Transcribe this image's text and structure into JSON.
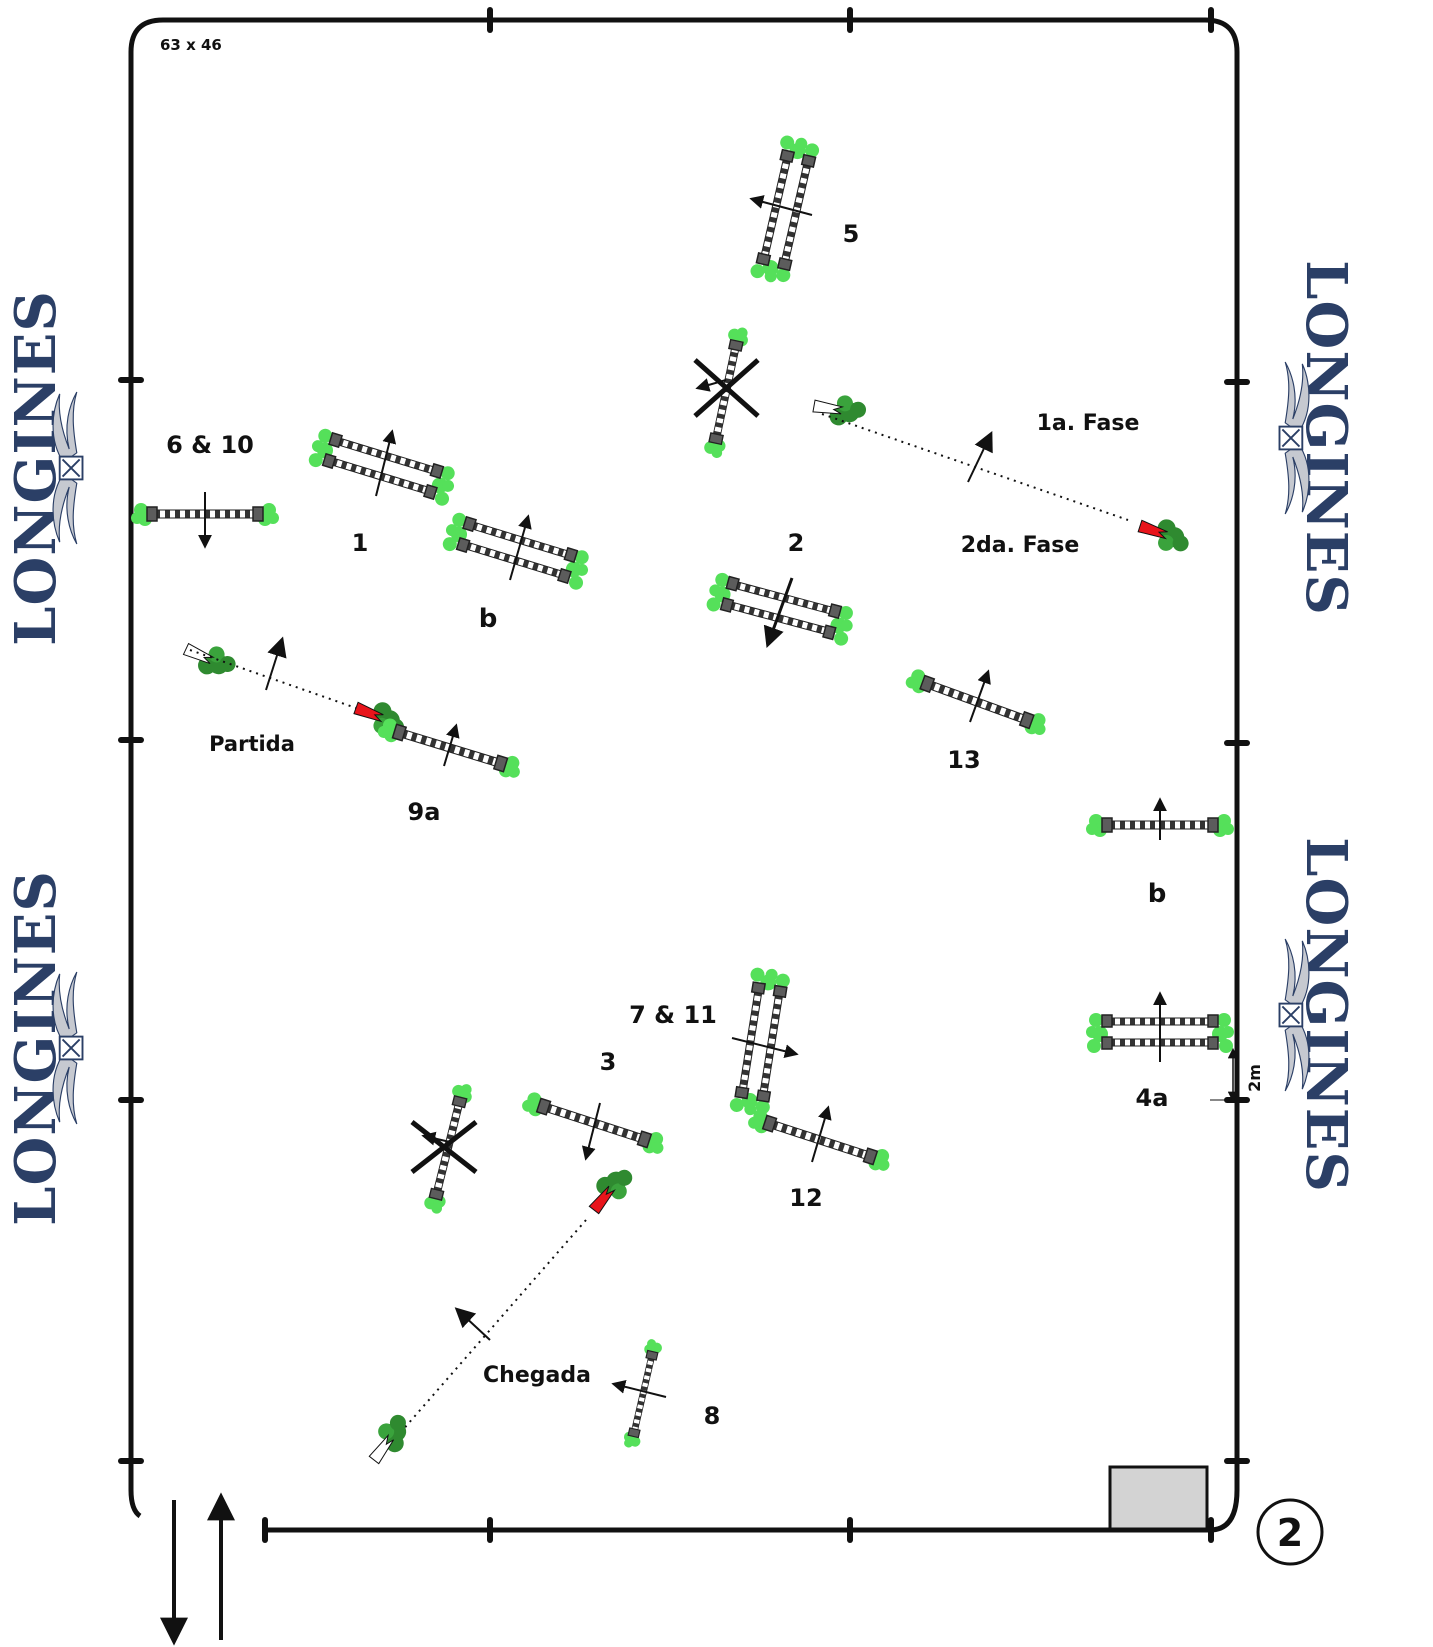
{
  "arena": {
    "dimensions": "63  x  46",
    "page_number": "2",
    "distance_marker": "2m"
  },
  "sponsor": {
    "logo_text": "LONGINES"
  },
  "labels": {
    "first_phase": "1a. Fase",
    "second_phase": "2da. Fase",
    "start": "Partida",
    "finish": "Chegada"
  },
  "obstacles": [
    {
      "id": "obstacle-1",
      "label": "1",
      "type": "oxer"
    },
    {
      "id": "obstacle-1b",
      "label": "b",
      "type": "oxer"
    },
    {
      "id": "obstacle-2",
      "label": "2",
      "type": "oxer"
    },
    {
      "id": "obstacle-3",
      "label": "3",
      "type": "vertical"
    },
    {
      "id": "obstacle-4a",
      "label": "4a",
      "type": "oxer"
    },
    {
      "id": "obstacle-4b",
      "label": "b",
      "type": "vertical"
    },
    {
      "id": "obstacle-5",
      "label": "5",
      "type": "oxer"
    },
    {
      "id": "obstacle-6-10",
      "label": "6 & 10",
      "type": "vertical"
    },
    {
      "id": "obstacle-7-11",
      "label": "7 & 11",
      "type": "oxer"
    },
    {
      "id": "obstacle-8",
      "label": "8",
      "type": "vertical"
    },
    {
      "id": "obstacle-9a",
      "label": "9a",
      "type": "vertical"
    },
    {
      "id": "obstacle-12",
      "label": "12",
      "type": "vertical"
    },
    {
      "id": "obstacle-13",
      "label": "13",
      "type": "vertical"
    }
  ],
  "colors": {
    "line": "#111111",
    "bush_light": "#55e05a",
    "bush_dark": "#2f8a30",
    "flag_red": "#e8141b",
    "logo_navy": "#2b3f66",
    "box_gray": "#d3d3d3"
  }
}
